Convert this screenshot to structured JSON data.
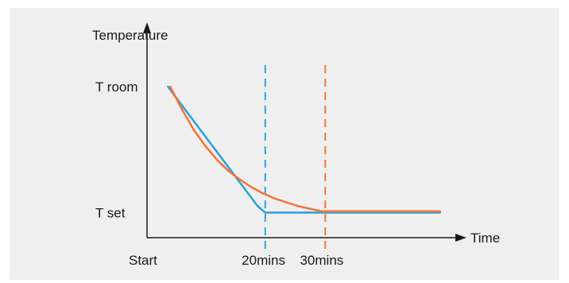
{
  "colors": {
    "background": "#ffffff",
    "panel": "#efefef",
    "axis": "#1a1a1a",
    "blue": "#2ea3d8",
    "orange": "#f2763a"
  },
  "chart_data": {
    "type": "line",
    "title": "",
    "xlabel": "Time",
    "ylabel": "Temperature",
    "x_tick_labels": [
      {
        "x": 0,
        "label": "Start"
      },
      {
        "x": 20,
        "label": "20mins"
      },
      {
        "x": 30,
        "label": "30mins"
      }
    ],
    "y_tick_labels": [
      {
        "y": 1,
        "label": "T room"
      },
      {
        "y": 0,
        "label": "T set"
      }
    ],
    "xlim": [
      0,
      54.3
    ],
    "ylim": [
      -0.2,
      1.5
    ],
    "grid": false,
    "legend": "none",
    "series": [
      {
        "color": "#2ea3d8",
        "points": [
          [
            3.6,
            1.0
          ],
          [
            19.0,
            0.05
          ],
          [
            20.3,
            0.0
          ],
          [
            50.3,
            0.0
          ]
        ]
      },
      {
        "color": "#f2763a",
        "points": [
          [
            4.0,
            1.0
          ],
          [
            6.0,
            0.82
          ],
          [
            8.0,
            0.66
          ],
          [
            10.0,
            0.53
          ],
          [
            12.0,
            0.42
          ],
          [
            14.0,
            0.33
          ],
          [
            16.0,
            0.26
          ],
          [
            18.0,
            0.2
          ],
          [
            20.0,
            0.15
          ],
          [
            22.0,
            0.11
          ],
          [
            24.0,
            0.08
          ],
          [
            26.0,
            0.05
          ],
          [
            28.0,
            0.03
          ],
          [
            30.0,
            0.01
          ],
          [
            50.3,
            0.01
          ]
        ]
      }
    ],
    "vertical_markers": [
      {
        "x": 20.3,
        "color": "#2ea3d8",
        "style": "dashed"
      },
      {
        "x": 30.6,
        "color": "#f2763a",
        "style": "dashed"
      }
    ]
  }
}
